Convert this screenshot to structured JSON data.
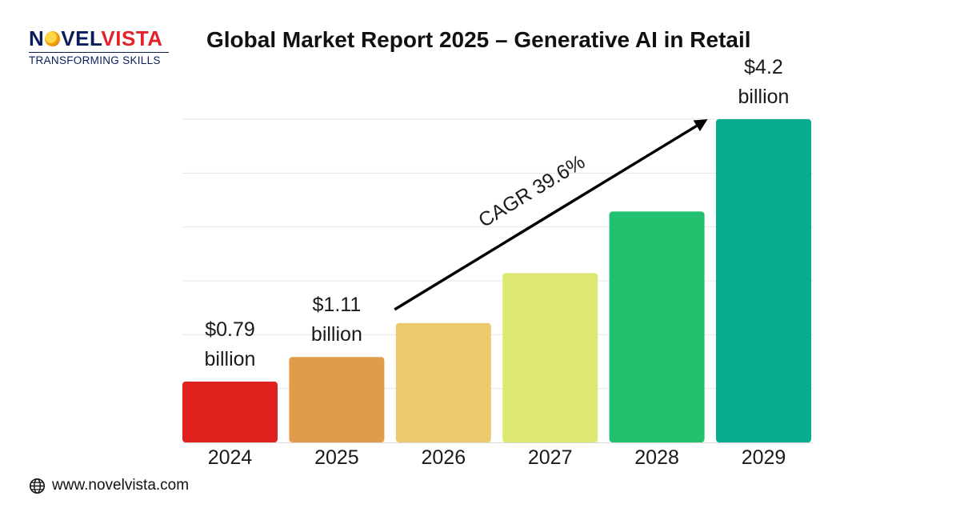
{
  "brand": {
    "name_part1": "N",
    "name_part2": "VEL",
    "name_part3": "VISTA",
    "tagline": "TRANSFORMING SKILLS"
  },
  "footer": {
    "website": "www.novelvista.com",
    "icon": "globe-icon"
  },
  "chart_data": {
    "type": "bar",
    "title": "Global Market Report 2025 – Generative AI in Retail",
    "xlabel": "",
    "ylabel": "",
    "categories": [
      "2024",
      "2025",
      "2026",
      "2027",
      "2028",
      "2029"
    ],
    "values": [
      0.79,
      1.11,
      1.55,
      2.2,
      3.0,
      4.2
    ],
    "units": "billion USD",
    "ylim": [
      0,
      4.2
    ],
    "grid": true,
    "bar_colors": [
      "#e0211d",
      "#e09c4b",
      "#edc96e",
      "#dde873",
      "#22c16f",
      "#05ad8e"
    ],
    "data_labels": [
      {
        "index": 0,
        "line1": "$0.79",
        "line2": "billion"
      },
      {
        "index": 1,
        "line1": "$1.11",
        "line2": "billion"
      },
      {
        "index": 5,
        "line1": "$4.2",
        "line2": "billion"
      }
    ],
    "annotation": {
      "text": "CAGR 39.6%",
      "type": "arrow",
      "from_index": 2,
      "to_index": 5
    }
  }
}
